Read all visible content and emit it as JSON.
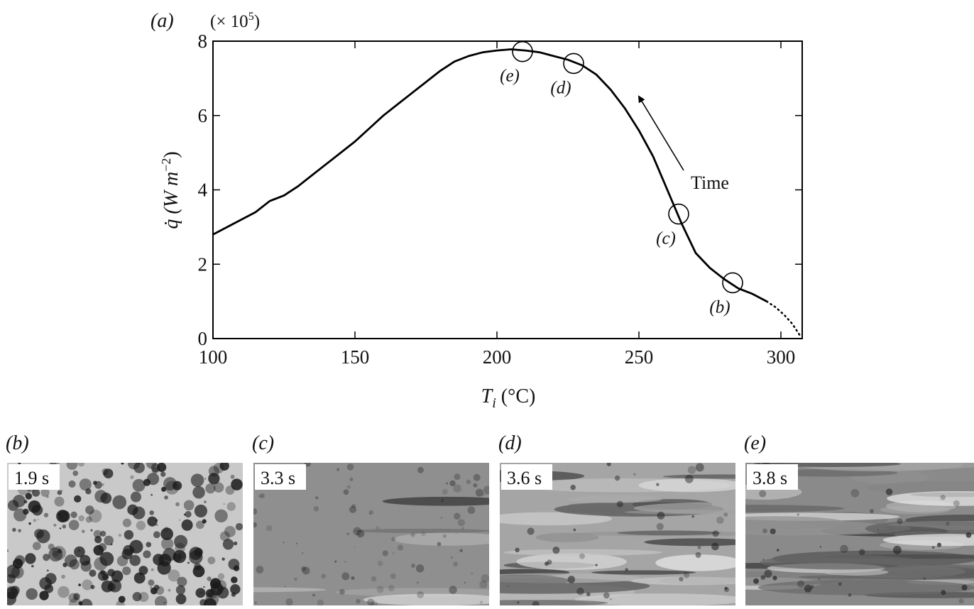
{
  "chart_data": {
    "type": "line",
    "panel_label": "(a)",
    "multiplier": {
      "text": "(× 10",
      "sup": "5",
      "end": ")"
    },
    "xlabel": {
      "main": "T",
      "sub": "i",
      "end": " (°C)"
    },
    "ylabel": {
      "main": "q̇ (W m",
      "sup": "−2",
      "end": ")"
    },
    "xlim": [
      100,
      307.5
    ],
    "ylim": [
      0,
      8
    ],
    "xticks": [
      100,
      150,
      200,
      250,
      300
    ],
    "yticks": [
      0,
      2,
      4,
      6,
      8
    ],
    "series": [
      {
        "color": "#000000",
        "style": "solid",
        "x": [
          100,
          105,
          110,
          115,
          120,
          125,
          130,
          135,
          140,
          145,
          150,
          155,
          160,
          165,
          170,
          175,
          180,
          185,
          190,
          195,
          200,
          205,
          210,
          215,
          220,
          225,
          230,
          235,
          240,
          245,
          250,
          255,
          260,
          265,
          270,
          275,
          280,
          285,
          290,
          295
        ],
        "values": [
          2.8,
          3.0,
          3.2,
          3.4,
          3.7,
          3.85,
          4.1,
          4.4,
          4.7,
          5.0,
          5.3,
          5.65,
          6.0,
          6.3,
          6.6,
          6.9,
          7.2,
          7.45,
          7.6,
          7.7,
          7.75,
          7.78,
          7.75,
          7.7,
          7.6,
          7.5,
          7.35,
          7.1,
          6.7,
          6.2,
          5.6,
          4.9,
          4.0,
          3.1,
          2.3,
          1.9,
          1.6,
          1.35,
          1.2,
          1.0
        ]
      },
      {
        "color": "#000000",
        "style": "dotted",
        "x": [
          295,
          298,
          301,
          304,
          307
        ],
        "values": [
          1.0,
          0.85,
          0.65,
          0.4,
          0.05
        ]
      }
    ],
    "markers": [
      {
        "label": "(b)",
        "x": 283,
        "y": 1.5
      },
      {
        "label": "(c)",
        "x": 264,
        "y": 3.35
      },
      {
        "label": "(d)",
        "x": 227,
        "y": 7.4
      },
      {
        "label": "(e)",
        "x": 209,
        "y": 7.72
      }
    ],
    "annotation": "Time"
  },
  "panels": [
    {
      "label": "(b)",
      "time": "1.9 s"
    },
    {
      "label": "(c)",
      "time": "3.3 s"
    },
    {
      "label": "(d)",
      "time": "3.6 s"
    },
    {
      "label": "(e)",
      "time": "3.8 s"
    }
  ]
}
